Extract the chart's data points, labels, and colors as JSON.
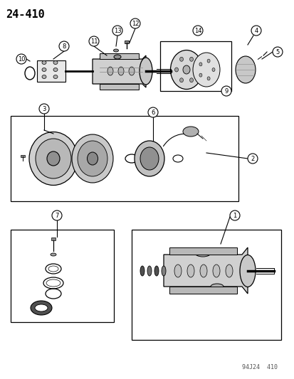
{
  "title": "24-410",
  "footer": "94J24  410",
  "background_color": "#ffffff",
  "line_color": "#000000",
  "text_color": "#000000",
  "callout_numbers": [
    1,
    2,
    3,
    4,
    5,
    6,
    7,
    8,
    9,
    10,
    11,
    12,
    13,
    14
  ],
  "fig_width": 4.14,
  "fig_height": 5.33,
  "dpi": 100
}
